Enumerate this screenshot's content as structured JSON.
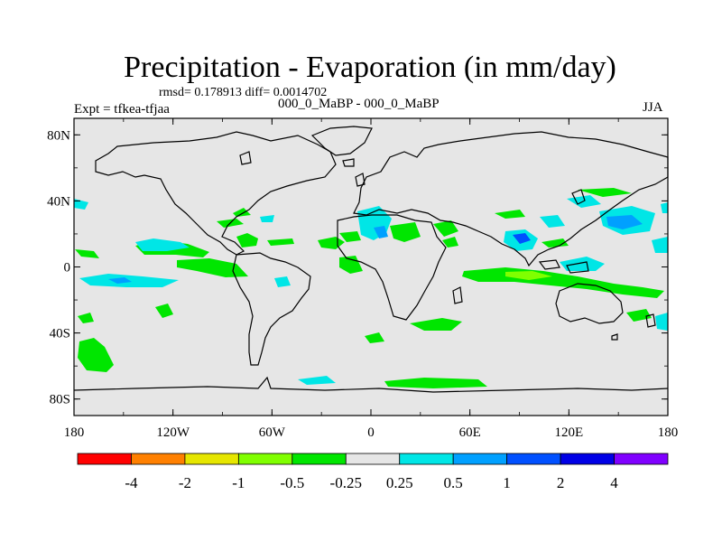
{
  "title": "Precipitation - Evaporation (in mm/day)",
  "stats": "rmsd= 0.178913 diff= 0.0014702",
  "subtitle": "000_0_MaBP - 000_0_MaBP",
  "left_label": "Expt = tfkea-tfjaa",
  "right_label": "JJA",
  "map": {
    "projection": "cylindrical-equidistant",
    "lon_range": [
      -180,
      180
    ],
    "lat_range": [
      -90,
      90
    ],
    "background_color": "#e6e6e6",
    "coastline_color": "#000000",
    "lat_ticks": [
      {
        "label": "80N",
        "value": 80
      },
      {
        "label": "40N",
        "value": 40
      },
      {
        "label": "0",
        "value": 0
      },
      {
        "label": "40S",
        "value": -40
      },
      {
        "label": "80S",
        "value": -80
      }
    ],
    "lon_ticks": [
      {
        "label": "180",
        "value": -180
      },
      {
        "label": "120W",
        "value": -120
      },
      {
        "label": "60W",
        "value": -60
      },
      {
        "label": "0",
        "value": 0
      },
      {
        "label": "60E",
        "value": 60
      },
      {
        "label": "120E",
        "value": 120
      },
      {
        "label": "180",
        "value": 180
      }
    ]
  },
  "colorbar": {
    "colors": [
      "#ff0000",
      "#ff8000",
      "#e6e600",
      "#80ff00",
      "#00e600",
      "#e6e6e6",
      "#00e6e6",
      "#00a0ff",
      "#0050ff",
      "#0000e6",
      "#8000ff"
    ],
    "labels": [
      "-4",
      "-2",
      "-1",
      "-0.5",
      "-0.25",
      "0.25",
      "0.5",
      "1",
      "2",
      "4"
    ]
  }
}
